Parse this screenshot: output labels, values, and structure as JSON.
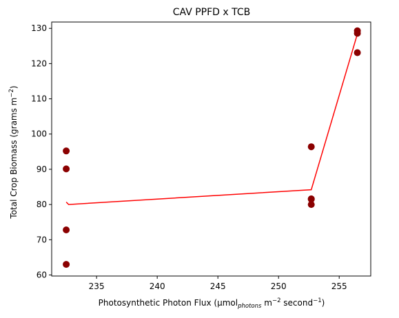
{
  "chart_data": {
    "type": "scatter",
    "title": "CAV PPFD x TCB",
    "xlabel": {
      "prefix": "Photosynthetic Photon Flux (μmol",
      "sub": "photons",
      "mid": " m",
      "sup1": "−2",
      "mid2": " second",
      "sup2": "−1",
      "suffix": ")"
    },
    "ylabel": {
      "prefix": "Total Crop Biomass (grams m",
      "sup": "−2",
      "suffix": ")"
    },
    "xlim": [
      231.3,
      257.6
    ],
    "ylim": [
      59.7,
      131.8
    ],
    "xticks": [
      235,
      240,
      245,
      250,
      255
    ],
    "yticks": [
      60,
      70,
      80,
      90,
      100,
      110,
      120,
      130
    ],
    "xtick_labels": [
      "235",
      "240",
      "245",
      "250",
      "255"
    ],
    "ytick_labels": [
      "60",
      "70",
      "80",
      "90",
      "100",
      "110",
      "120",
      "130"
    ],
    "grid": false,
    "series": [
      {
        "kind": "scatter",
        "color": "#8b0000",
        "points": [
          {
            "x": 232.5,
            "y": 95.2
          },
          {
            "x": 232.5,
            "y": 90.1
          },
          {
            "x": 232.5,
            "y": 72.8
          },
          {
            "x": 232.5,
            "y": 63.0
          },
          {
            "x": 252.7,
            "y": 96.4
          },
          {
            "x": 252.7,
            "y": 81.6
          },
          {
            "x": 252.7,
            "y": 81.5
          },
          {
            "x": 252.7,
            "y": 80.0
          },
          {
            "x": 256.5,
            "y": 129.3
          },
          {
            "x": 256.5,
            "y": 128.6
          },
          {
            "x": 256.5,
            "y": 123.1
          }
        ]
      },
      {
        "kind": "line",
        "color": "#ff0000",
        "points": [
          {
            "x": 232.5,
            "y": 80.7
          },
          {
            "x": 232.7,
            "y": 80.0
          },
          {
            "x": 252.7,
            "y": 84.2
          },
          {
            "x": 256.5,
            "y": 128.4
          }
        ]
      }
    ]
  }
}
